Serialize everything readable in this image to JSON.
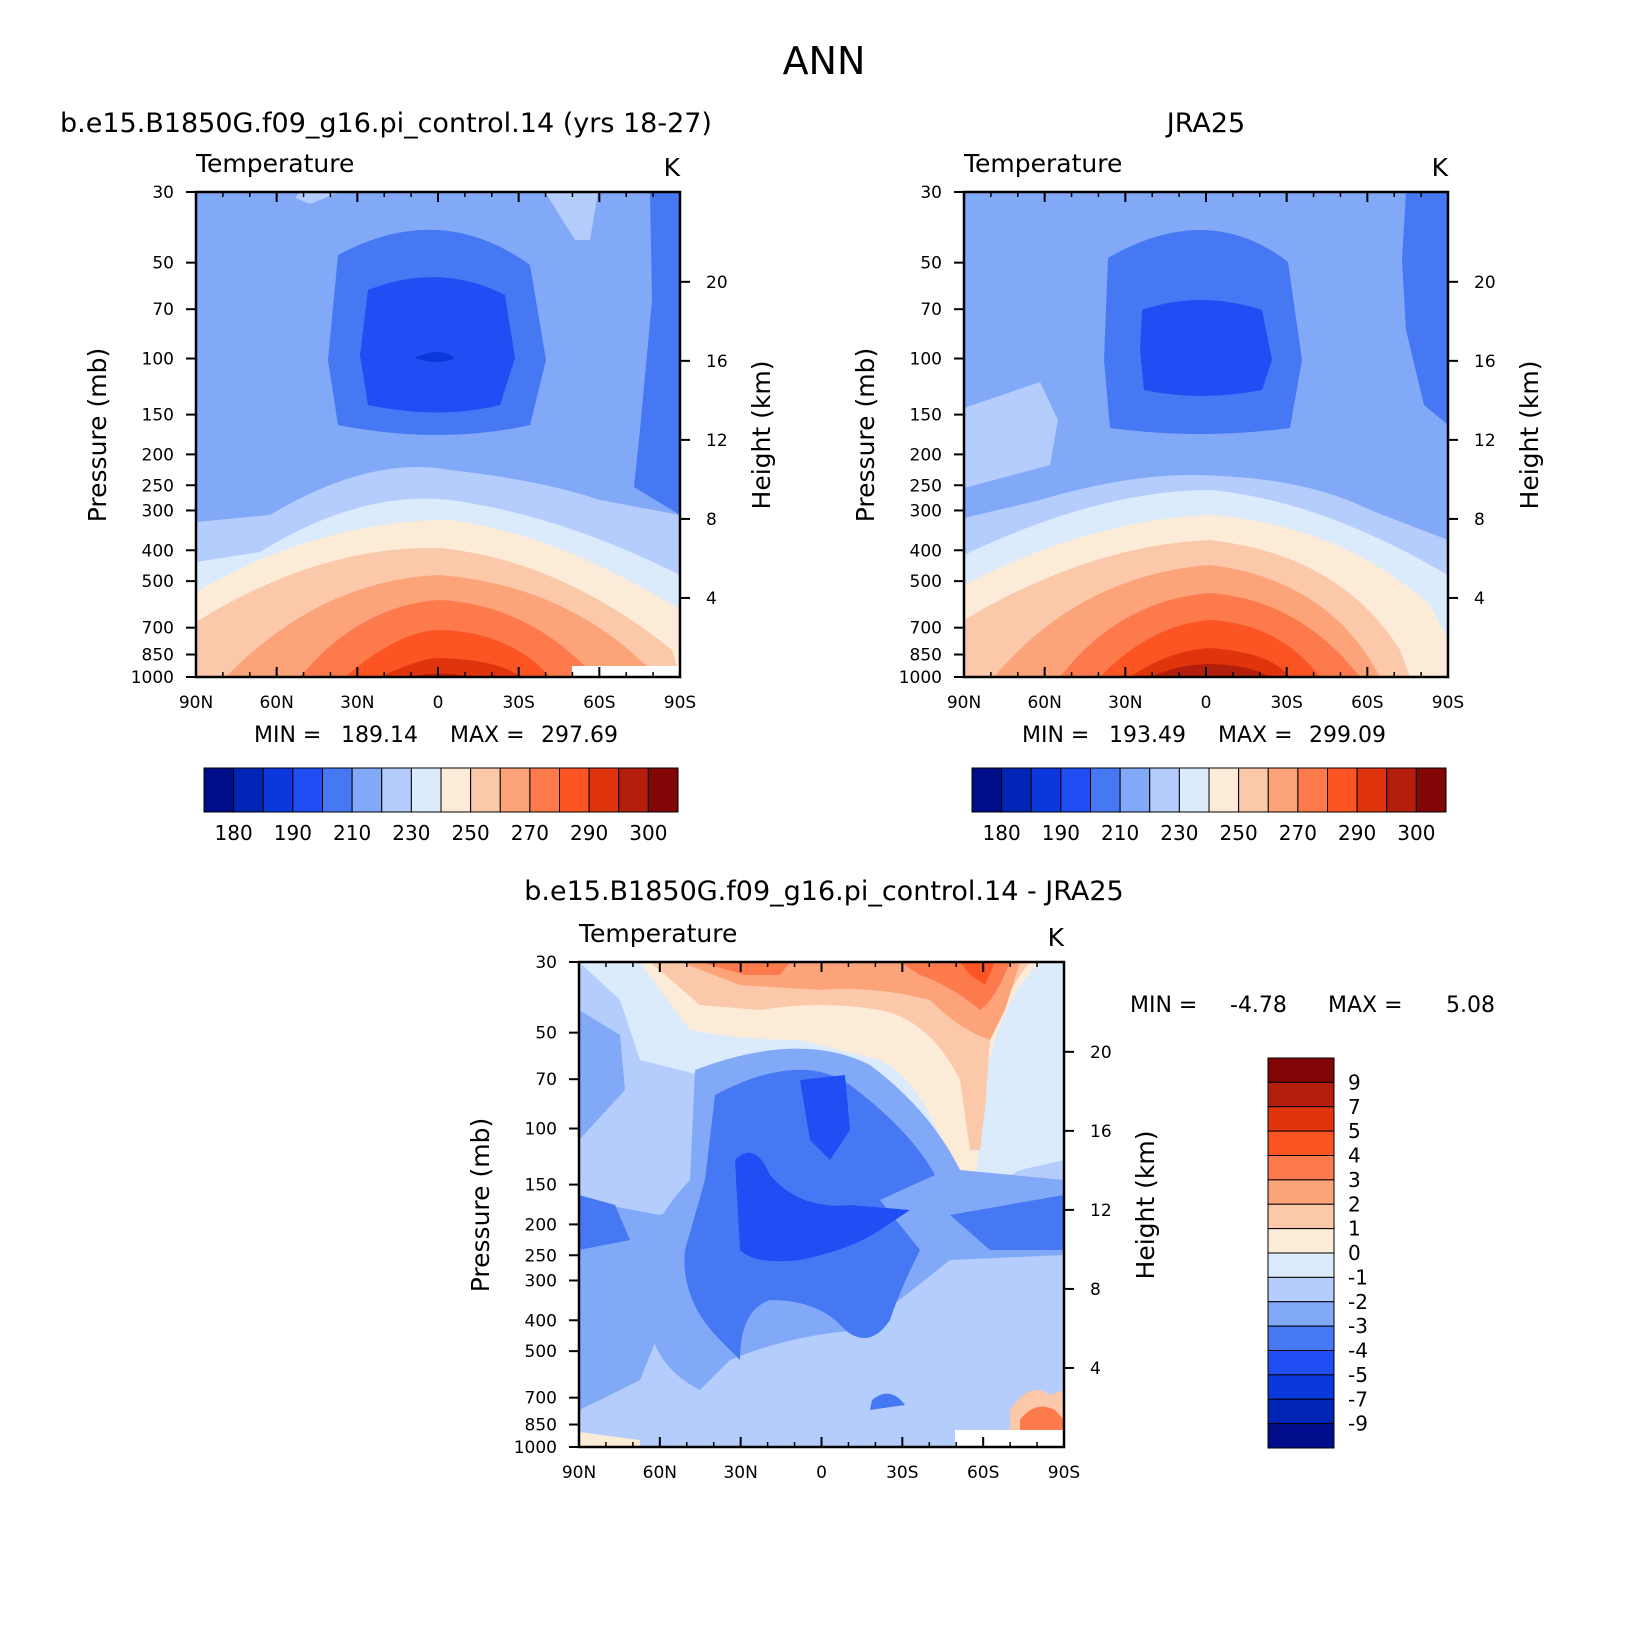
{
  "figure": {
    "title": "ANN"
  },
  "chart_data": [
    {
      "type": "contour",
      "panel": "model",
      "title": "b.e15.B1850G.f09_g16.pi_control.14 (yrs 18-27)",
      "variable": "Temperature",
      "units": "K",
      "xlabel": "",
      "ylabel": "Pressure (mb)",
      "ylabel_right": "Height (km)",
      "x_ticks": [
        "90N",
        "60N",
        "30N",
        "0",
        "30S",
        "60S",
        "90S"
      ],
      "x_values": [
        90,
        60,
        30,
        0,
        -30,
        -60,
        -90
      ],
      "y_ticks": [
        "30",
        "50",
        "70",
        "100",
        "150",
        "200",
        "250",
        "300",
        "400",
        "500",
        "700",
        "850",
        "1000"
      ],
      "y_values": [
        30,
        50,
        70,
        100,
        150,
        200,
        250,
        300,
        400,
        500,
        700,
        850,
        1000
      ],
      "y_scale": "log",
      "y_ticks_right": [
        "20",
        "16",
        "12",
        "8",
        "4"
      ],
      "stats": {
        "min_label": "MIN =",
        "min_value": "189.14",
        "max_label": "MAX =",
        "max_value": "297.69"
      },
      "colorbar": {
        "orientation": "horizontal",
        "labels": [
          "180",
          "190",
          "210",
          "230",
          "250",
          "270",
          "290",
          "300"
        ],
        "colors": [
          "#000e8c",
          "#0024b4",
          "#0a38dc",
          "#1e4ef4",
          "#4678f4",
          "#82a8f8",
          "#b4cdfc",
          "#dcebfc",
          "#fcebd6",
          "#fcc8aa",
          "#fca37a",
          "#fc7a4c",
          "#fc5523",
          "#e0340c",
          "#b41e0c",
          "#820606"
        ]
      },
      "bands": [
        {
          "p": 1000,
          "T": 297.69
        },
        {
          "p": 850,
          "T": 291
        },
        {
          "p": 700,
          "T": 282
        },
        {
          "p": 500,
          "T": 268
        },
        {
          "p": 400,
          "T": 260
        },
        {
          "p": 300,
          "T": 245
        },
        {
          "p": 250,
          "T": 236
        },
        {
          "p": 200,
          "T": 222
        },
        {
          "p": 150,
          "T": 206
        },
        {
          "p": 100,
          "T": 189.14
        },
        {
          "p": 70,
          "T": 195
        },
        {
          "p": 50,
          "T": 205
        },
        {
          "p": 30,
          "T": 218
        }
      ]
    },
    {
      "type": "contour",
      "panel": "obs",
      "title": "JRA25",
      "variable": "Temperature",
      "units": "K",
      "xlabel": "",
      "ylabel": "Pressure (mb)",
      "ylabel_right": "Height (km)",
      "x_ticks": [
        "90N",
        "60N",
        "30N",
        "0",
        "30S",
        "60S",
        "90S"
      ],
      "x_values": [
        90,
        60,
        30,
        0,
        -30,
        -60,
        -90
      ],
      "y_ticks": [
        "30",
        "50",
        "70",
        "100",
        "150",
        "200",
        "250",
        "300",
        "400",
        "500",
        "700",
        "850",
        "1000"
      ],
      "y_values": [
        30,
        50,
        70,
        100,
        150,
        200,
        250,
        300,
        400,
        500,
        700,
        850,
        1000
      ],
      "y_scale": "log",
      "y_ticks_right": [
        "20",
        "16",
        "12",
        "8",
        "4"
      ],
      "stats": {
        "min_label": "MIN =",
        "min_value": "193.49",
        "max_label": "MAX =",
        "max_value": "299.09"
      },
      "colorbar": {
        "orientation": "horizontal",
        "labels": [
          "180",
          "190",
          "210",
          "230",
          "250",
          "270",
          "290",
          "300"
        ],
        "colors": [
          "#000e8c",
          "#0024b4",
          "#0a38dc",
          "#1e4ef4",
          "#4678f4",
          "#82a8f8",
          "#b4cdfc",
          "#dcebfc",
          "#fcebd6",
          "#fcc8aa",
          "#fca37a",
          "#fc7a4c",
          "#fc5523",
          "#e0340c",
          "#b41e0c",
          "#820606"
        ]
      },
      "bands": [
        {
          "p": 1000,
          "T": 299.09
        },
        {
          "p": 850,
          "T": 292
        },
        {
          "p": 700,
          "T": 283
        },
        {
          "p": 500,
          "T": 268
        },
        {
          "p": 400,
          "T": 260
        },
        {
          "p": 300,
          "T": 244
        },
        {
          "p": 250,
          "T": 235
        },
        {
          "p": 200,
          "T": 221
        },
        {
          "p": 150,
          "T": 207
        },
        {
          "p": 100,
          "T": 193.49
        },
        {
          "p": 70,
          "T": 197
        },
        {
          "p": 50,
          "T": 206
        },
        {
          "p": 30,
          "T": 219
        }
      ]
    },
    {
      "type": "contour",
      "panel": "difference",
      "title": "b.e15.B1850G.f09_g16.pi_control.14 - JRA25",
      "variable": "Temperature",
      "units": "K",
      "xlabel": "",
      "ylabel": "Pressure (mb)",
      "ylabel_right": "Height (km)",
      "x_ticks": [
        "90N",
        "60N",
        "30N",
        "0",
        "30S",
        "60S",
        "90S"
      ],
      "x_values": [
        90,
        60,
        30,
        0,
        -30,
        -60,
        -90
      ],
      "y_ticks": [
        "30",
        "50",
        "70",
        "100",
        "150",
        "200",
        "250",
        "300",
        "400",
        "500",
        "700",
        "850",
        "1000"
      ],
      "y_values": [
        30,
        50,
        70,
        100,
        150,
        200,
        250,
        300,
        400,
        500,
        700,
        850,
        1000
      ],
      "y_scale": "log",
      "y_ticks_right": [
        "20",
        "16",
        "12",
        "8",
        "4"
      ],
      "stats": {
        "min_label": "MIN =",
        "min_value": "-4.78",
        "max_label": "MAX =",
        "max_value": "5.08"
      },
      "colorbar": {
        "orientation": "vertical",
        "labels": [
          "9",
          "7",
          "5",
          "4",
          "3",
          "2",
          "1",
          "0",
          "-1",
          "-2",
          "-3",
          "-4",
          "-5",
          "-7",
          "-9"
        ],
        "colors": [
          "#820606",
          "#b41e0c",
          "#e0340c",
          "#fc5523",
          "#fc7a4c",
          "#fca37a",
          "#fcc8aa",
          "#fcebd6",
          "#dcebfc",
          "#b4cdfc",
          "#82a8f8",
          "#4678f4",
          "#1e4ef4",
          "#0a38dc",
          "#0024b4",
          "#000e8c"
        ]
      }
    }
  ]
}
